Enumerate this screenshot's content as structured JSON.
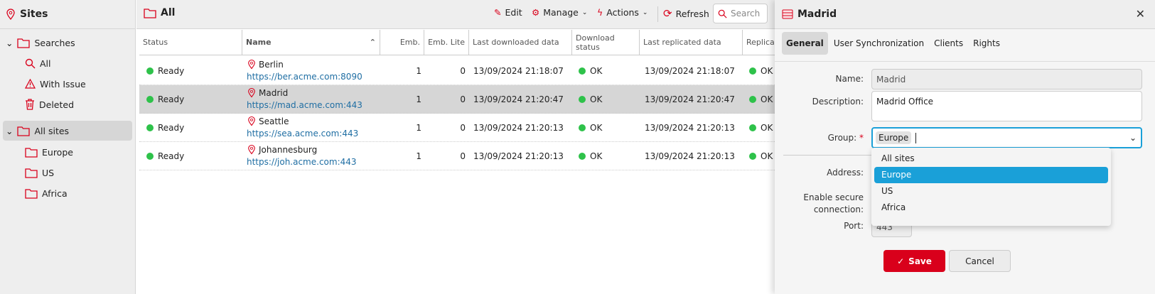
{
  "sidebar": {
    "title": "Sites",
    "items": [
      {
        "label": "Searches",
        "icon": "folder-icon"
      },
      {
        "label": "All",
        "icon": "search-icon"
      },
      {
        "label": "With Issue",
        "icon": "warning-icon"
      },
      {
        "label": "Deleted",
        "icon": "trash-icon"
      },
      {
        "label": "All sites",
        "icon": "folder-icon",
        "selected": true
      },
      {
        "label": "Europe",
        "icon": "folder-icon"
      },
      {
        "label": "US",
        "icon": "folder-icon"
      },
      {
        "label": "Africa",
        "icon": "folder-icon"
      }
    ]
  },
  "main": {
    "title": "All",
    "toolbar": {
      "edit": "Edit",
      "manage": "Manage",
      "actions": "Actions",
      "refresh": "Refresh",
      "search_placeholder": "Search"
    },
    "columns": [
      "Status",
      "Name",
      "Emb.",
      "Emb. Lite",
      "Last downloaded data",
      "Download status",
      "Last replicated data",
      "Replicat"
    ],
    "rows": [
      {
        "status": "Ready",
        "name": "Berlin",
        "url": "https://ber.acme.com:8090",
        "emb": "1",
        "emb_lite": "0",
        "last_downloaded": "13/09/2024 21:18:07",
        "download_status": "OK",
        "last_replicated": "13/09/2024 21:18:07",
        "replication": "OK"
      },
      {
        "status": "Ready",
        "name": "Madrid",
        "url": "https://mad.acme.com:443",
        "emb": "1",
        "emb_lite": "0",
        "last_downloaded": "13/09/2024 21:20:47",
        "download_status": "OK",
        "last_replicated": "13/09/2024 21:20:47",
        "replication": "OK",
        "selected": true
      },
      {
        "status": "Ready",
        "name": "Seattle",
        "url": "https://sea.acme.com:443",
        "emb": "1",
        "emb_lite": "0",
        "last_downloaded": "13/09/2024 21:20:13",
        "download_status": "OK",
        "last_replicated": "13/09/2024 21:20:13",
        "replication": "OK"
      },
      {
        "status": "Ready",
        "name": "Johannesburg",
        "url": "https://joh.acme.com:443",
        "emb": "1",
        "emb_lite": "0",
        "last_downloaded": "13/09/2024 21:20:13",
        "download_status": "OK",
        "last_replicated": "13/09/2024 21:20:13",
        "replication": "OK"
      }
    ]
  },
  "panel": {
    "title": "Madrid",
    "tabs": [
      "General",
      "User Synchronization",
      "Clients",
      "Rights"
    ],
    "labels": {
      "name": "Name:",
      "description": "Description:",
      "group": "Group:",
      "required": "*",
      "address": "Address:",
      "secure1": "Enable secure",
      "secure2": "connection:",
      "port": "Port:"
    },
    "values": {
      "name": "Madrid",
      "description": "Madrid Office",
      "group": "Europe",
      "port": "443"
    },
    "group_options": [
      "All sites",
      "Europe",
      "US",
      "Africa"
    ],
    "save": "Save",
    "cancel": "Cancel"
  },
  "colors": {
    "accent": "#d9001b",
    "highlight": "#1aa0d8",
    "ok": "#2ec24a",
    "link": "#1f6ea3"
  }
}
